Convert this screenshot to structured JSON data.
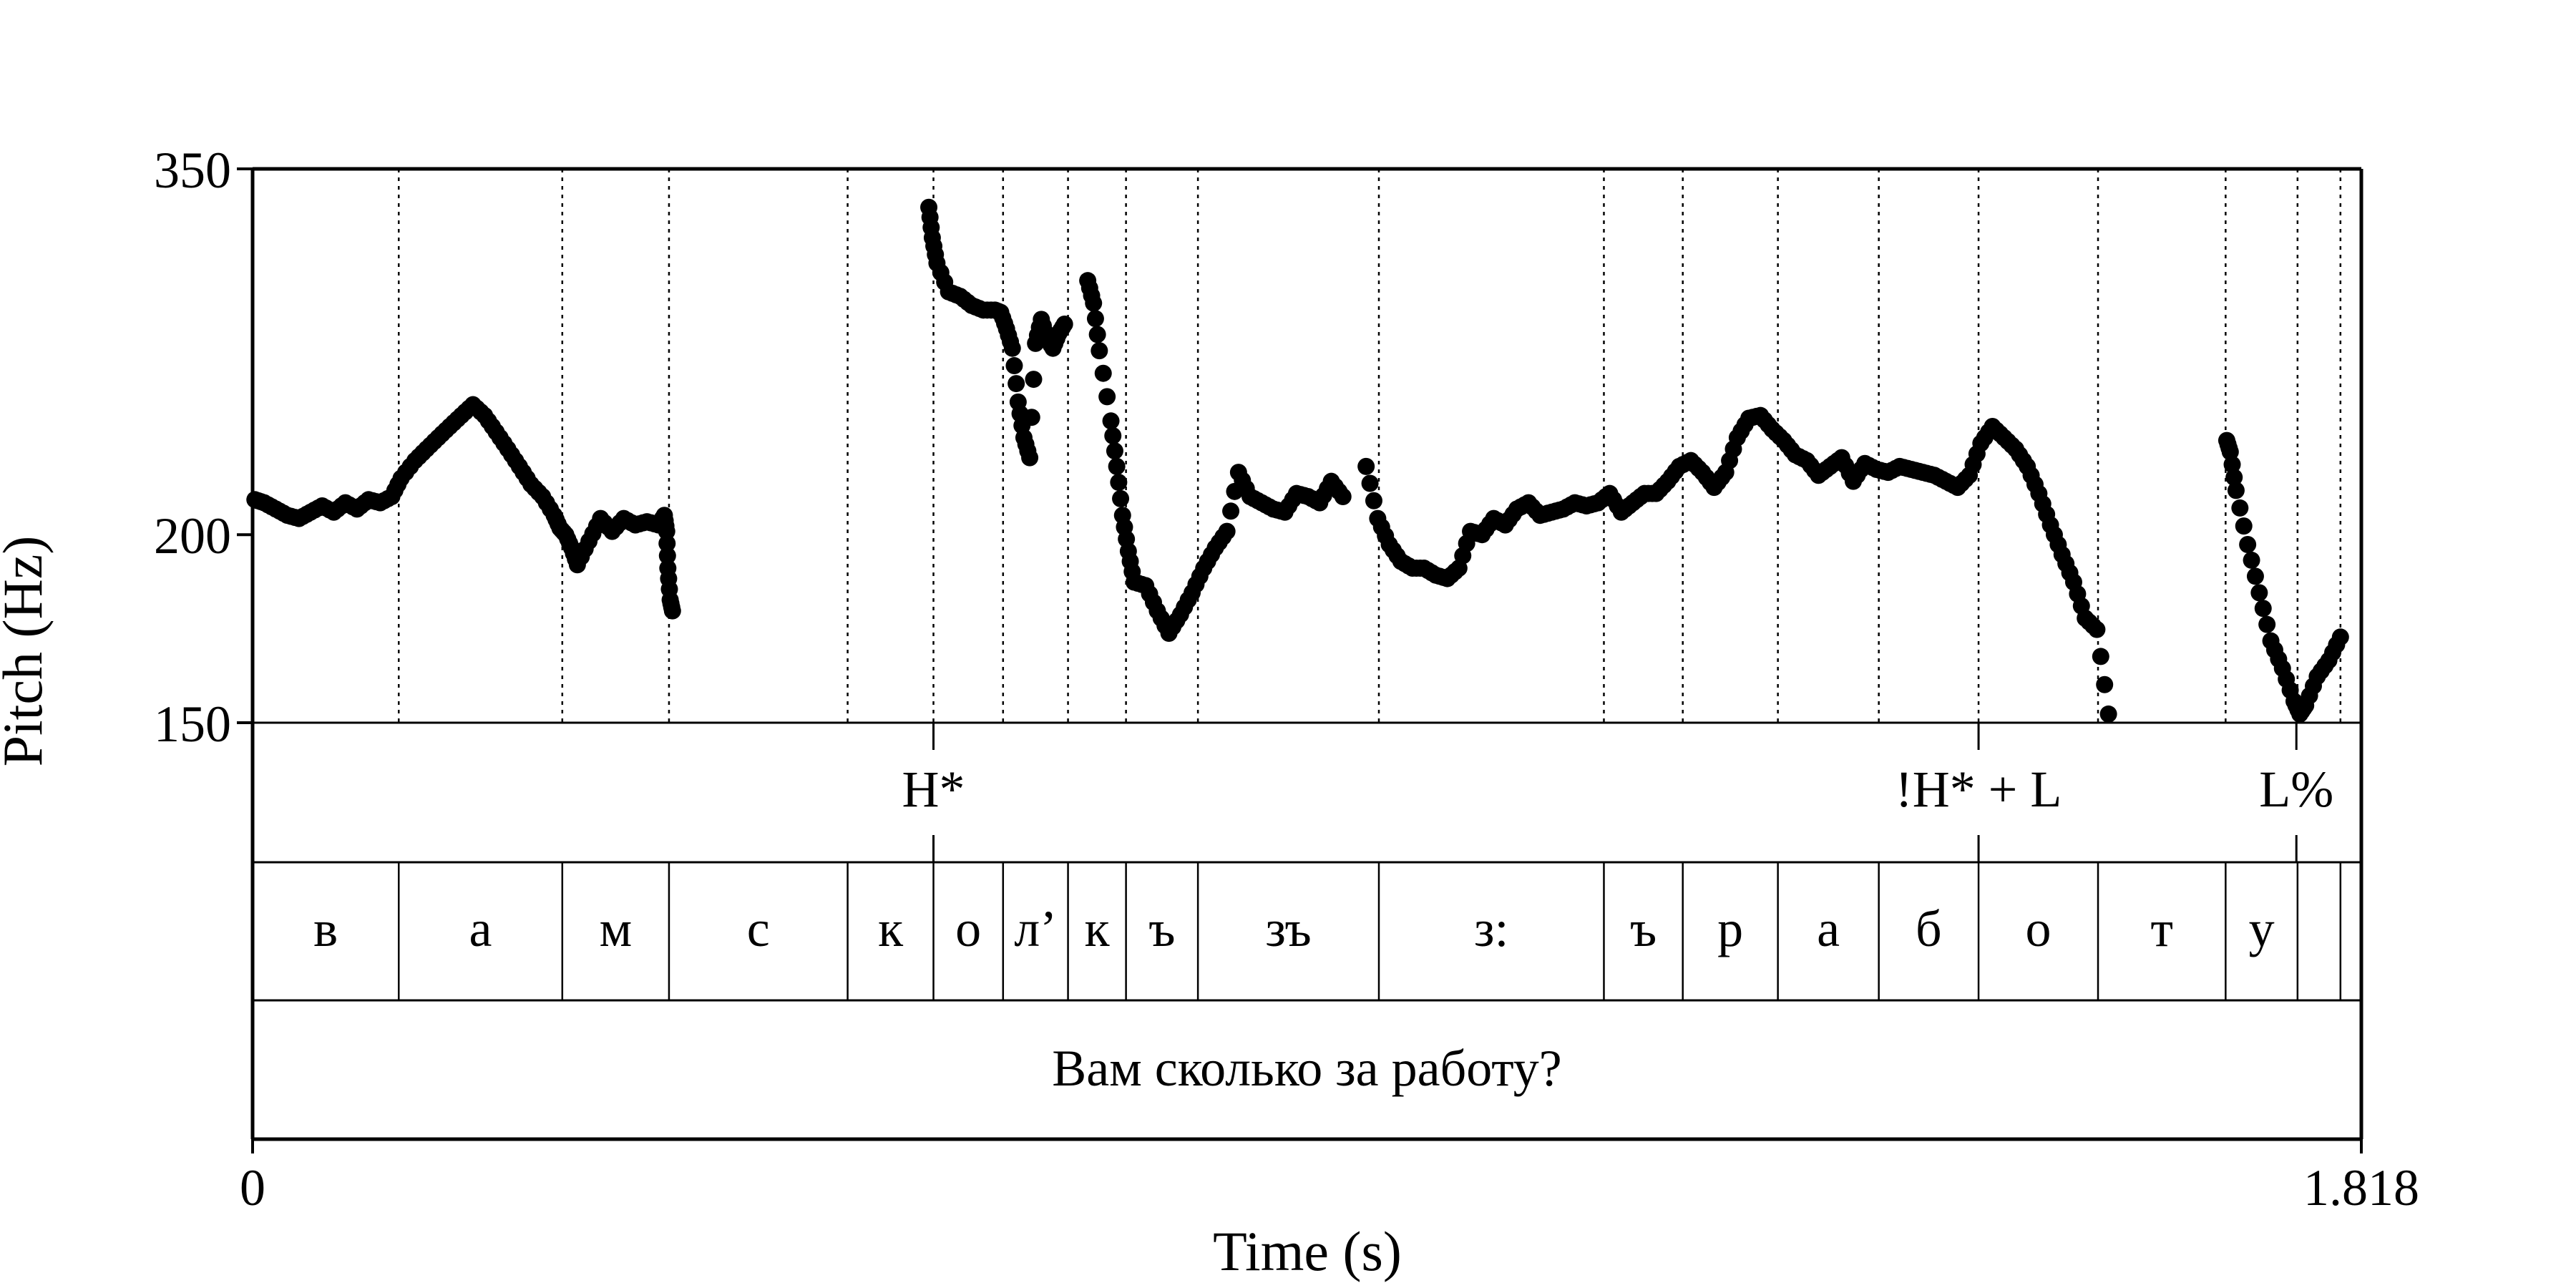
{
  "chart_data": {
    "type": "scatter",
    "title": "",
    "xlabel": "Time (s)",
    "ylabel": "Pitch (Hz)",
    "xlim": [
      0,
      1.818
    ],
    "ylim": [
      150,
      350
    ],
    "y_scale": "log",
    "x_ticks": [
      "0",
      "1.818"
    ],
    "y_ticks": [
      150,
      200,
      350
    ],
    "grid": false,
    "tones_tier": [
      {
        "label": "H*",
        "time": 0.587
      },
      {
        "label": "!H* + L",
        "time": 1.488
      },
      {
        "label": "L%",
        "time": 1.762
      }
    ],
    "segment_boundaries": [
      0.126,
      0.267,
      0.359,
      0.513,
      0.587,
      0.647,
      0.703,
      0.753,
      0.815,
      0.971,
      1.165,
      1.233,
      1.315,
      1.402,
      1.488,
      1.591,
      1.701,
      1.763,
      1.8
    ],
    "segment_labels": [
      "в",
      "а",
      "м",
      "с",
      "к",
      "о",
      "л’",
      "к",
      "ъ",
      "зъ",
      "з:",
      "ъ",
      "р",
      "а",
      "б",
      "о",
      "т",
      "у"
    ],
    "sentence": "Вам сколько за работу?",
    "pitch_points": [
      [
        0.002,
        211
      ],
      [
        0.01,
        210
      ],
      [
        0.02,
        208
      ],
      [
        0.03,
        206
      ],
      [
        0.04,
        205
      ],
      [
        0.05,
        207
      ],
      [
        0.06,
        209
      ],
      [
        0.07,
        207
      ],
      [
        0.08,
        210
      ],
      [
        0.09,
        208
      ],
      [
        0.1,
        211
      ],
      [
        0.11,
        210
      ],
      [
        0.12,
        212
      ],
      [
        0.128,
        218
      ],
      [
        0.14,
        224
      ],
      [
        0.15,
        228
      ],
      [
        0.16,
        232
      ],
      [
        0.17,
        236
      ],
      [
        0.18,
        240
      ],
      [
        0.19,
        244
      ],
      [
        0.2,
        240
      ],
      [
        0.21,
        234
      ],
      [
        0.22,
        228
      ],
      [
        0.23,
        222
      ],
      [
        0.24,
        216
      ],
      [
        0.25,
        212
      ],
      [
        0.26,
        206
      ],
      [
        0.265,
        202
      ],
      [
        0.27,
        200
      ],
      [
        0.275,
        196
      ],
      [
        0.28,
        191
      ],
      [
        0.29,
        198
      ],
      [
        0.3,
        205
      ],
      [
        0.31,
        201
      ],
      [
        0.32,
        205
      ],
      [
        0.33,
        203
      ],
      [
        0.34,
        204
      ],
      [
        0.35,
        203
      ],
      [
        0.355,
        206
      ],
      [
        0.357,
        201
      ],
      [
        0.358,
        190
      ],
      [
        0.36,
        181
      ],
      [
        0.362,
        178
      ],
      [
        0.583,
        330
      ],
      [
        0.586,
        315
      ],
      [
        0.59,
        303
      ],
      [
        0.6,
        290
      ],
      [
        0.61,
        288
      ],
      [
        0.62,
        284
      ],
      [
        0.63,
        282
      ],
      [
        0.64,
        282
      ],
      [
        0.645,
        281
      ],
      [
        0.65,
        274
      ],
      [
        0.655,
        266
      ],
      [
        0.66,
        245
      ],
      [
        0.665,
        232
      ],
      [
        0.67,
        225
      ],
      [
        0.675,
        268
      ],
      [
        0.68,
        278
      ],
      [
        0.685,
        270
      ],
      [
        0.69,
        266
      ],
      [
        0.695,
        272
      ],
      [
        0.7,
        276
      ],
      [
        0.72,
        295
      ],
      [
        0.725,
        285
      ],
      [
        0.73,
        265
      ],
      [
        0.74,
        238
      ],
      [
        0.745,
        222
      ],
      [
        0.75,
        206
      ],
      [
        0.755,
        195
      ],
      [
        0.76,
        186
      ],
      [
        0.77,
        185
      ],
      [
        0.78,
        178
      ],
      [
        0.79,
        172
      ],
      [
        0.8,
        177
      ],
      [
        0.81,
        183
      ],
      [
        0.82,
        190
      ],
      [
        0.83,
        196
      ],
      [
        0.84,
        201
      ],
      [
        0.85,
        220
      ],
      [
        0.86,
        212
      ],
      [
        0.87,
        210
      ],
      [
        0.88,
        208
      ],
      [
        0.89,
        207
      ],
      [
        0.9,
        213
      ],
      [
        0.91,
        212
      ],
      [
        0.92,
        210
      ],
      [
        0.93,
        217
      ],
      [
        0.94,
        212
      ],
      [
        0.96,
        222
      ],
      [
        0.97,
        205
      ],
      [
        0.98,
        197
      ],
      [
        0.99,
        192
      ],
      [
        1.0,
        190
      ],
      [
        1.01,
        190
      ],
      [
        1.02,
        188
      ],
      [
        1.03,
        187
      ],
      [
        1.04,
        190
      ],
      [
        1.05,
        201
      ],
      [
        1.06,
        200
      ],
      [
        1.07,
        205
      ],
      [
        1.08,
        203
      ],
      [
        1.09,
        208
      ],
      [
        1.1,
        210
      ],
      [
        1.11,
        206
      ],
      [
        1.12,
        207
      ],
      [
        1.13,
        208
      ],
      [
        1.14,
        210
      ],
      [
        1.15,
        209
      ],
      [
        1.16,
        210
      ],
      [
        1.17,
        213
      ],
      [
        1.18,
        207
      ],
      [
        1.19,
        210
      ],
      [
        1.2,
        213
      ],
      [
        1.21,
        213
      ],
      [
        1.22,
        217
      ],
      [
        1.23,
        222
      ],
      [
        1.24,
        224
      ],
      [
        1.25,
        220
      ],
      [
        1.26,
        215
      ],
      [
        1.27,
        220
      ],
      [
        1.28,
        232
      ],
      [
        1.29,
        239
      ],
      [
        1.3,
        240
      ],
      [
        1.31,
        235
      ],
      [
        1.32,
        231
      ],
      [
        1.33,
        226
      ],
      [
        1.34,
        224
      ],
      [
        1.35,
        219
      ],
      [
        1.36,
        222
      ],
      [
        1.37,
        225
      ],
      [
        1.38,
        217
      ],
      [
        1.39,
        223
      ],
      [
        1.4,
        221
      ],
      [
        1.41,
        220
      ],
      [
        1.42,
        222
      ],
      [
        1.43,
        221
      ],
      [
        1.44,
        220
      ],
      [
        1.45,
        219
      ],
      [
        1.46,
        217
      ],
      [
        1.47,
        215
      ],
      [
        1.48,
        219
      ],
      [
        1.49,
        230
      ],
      [
        1.5,
        236
      ],
      [
        1.51,
        232
      ],
      [
        1.52,
        228
      ],
      [
        1.53,
        222
      ],
      [
        1.54,
        213
      ],
      [
        1.55,
        203
      ],
      [
        1.56,
        194
      ],
      [
        1.57,
        186
      ],
      [
        1.58,
        176
      ],
      [
        1.59,
        173
      ],
      [
        1.6,
        152
      ],
      [
        1.702,
        231
      ],
      [
        1.705,
        227
      ],
      [
        1.71,
        214
      ],
      [
        1.72,
        197
      ],
      [
        1.73,
        183
      ],
      [
        1.74,
        170
      ],
      [
        1.75,
        163
      ],
      [
        1.76,
        155
      ],
      [
        1.765,
        152
      ],
      [
        1.77,
        154
      ],
      [
        1.78,
        161
      ],
      [
        1.79,
        165
      ],
      [
        1.8,
        171
      ]
    ]
  }
}
